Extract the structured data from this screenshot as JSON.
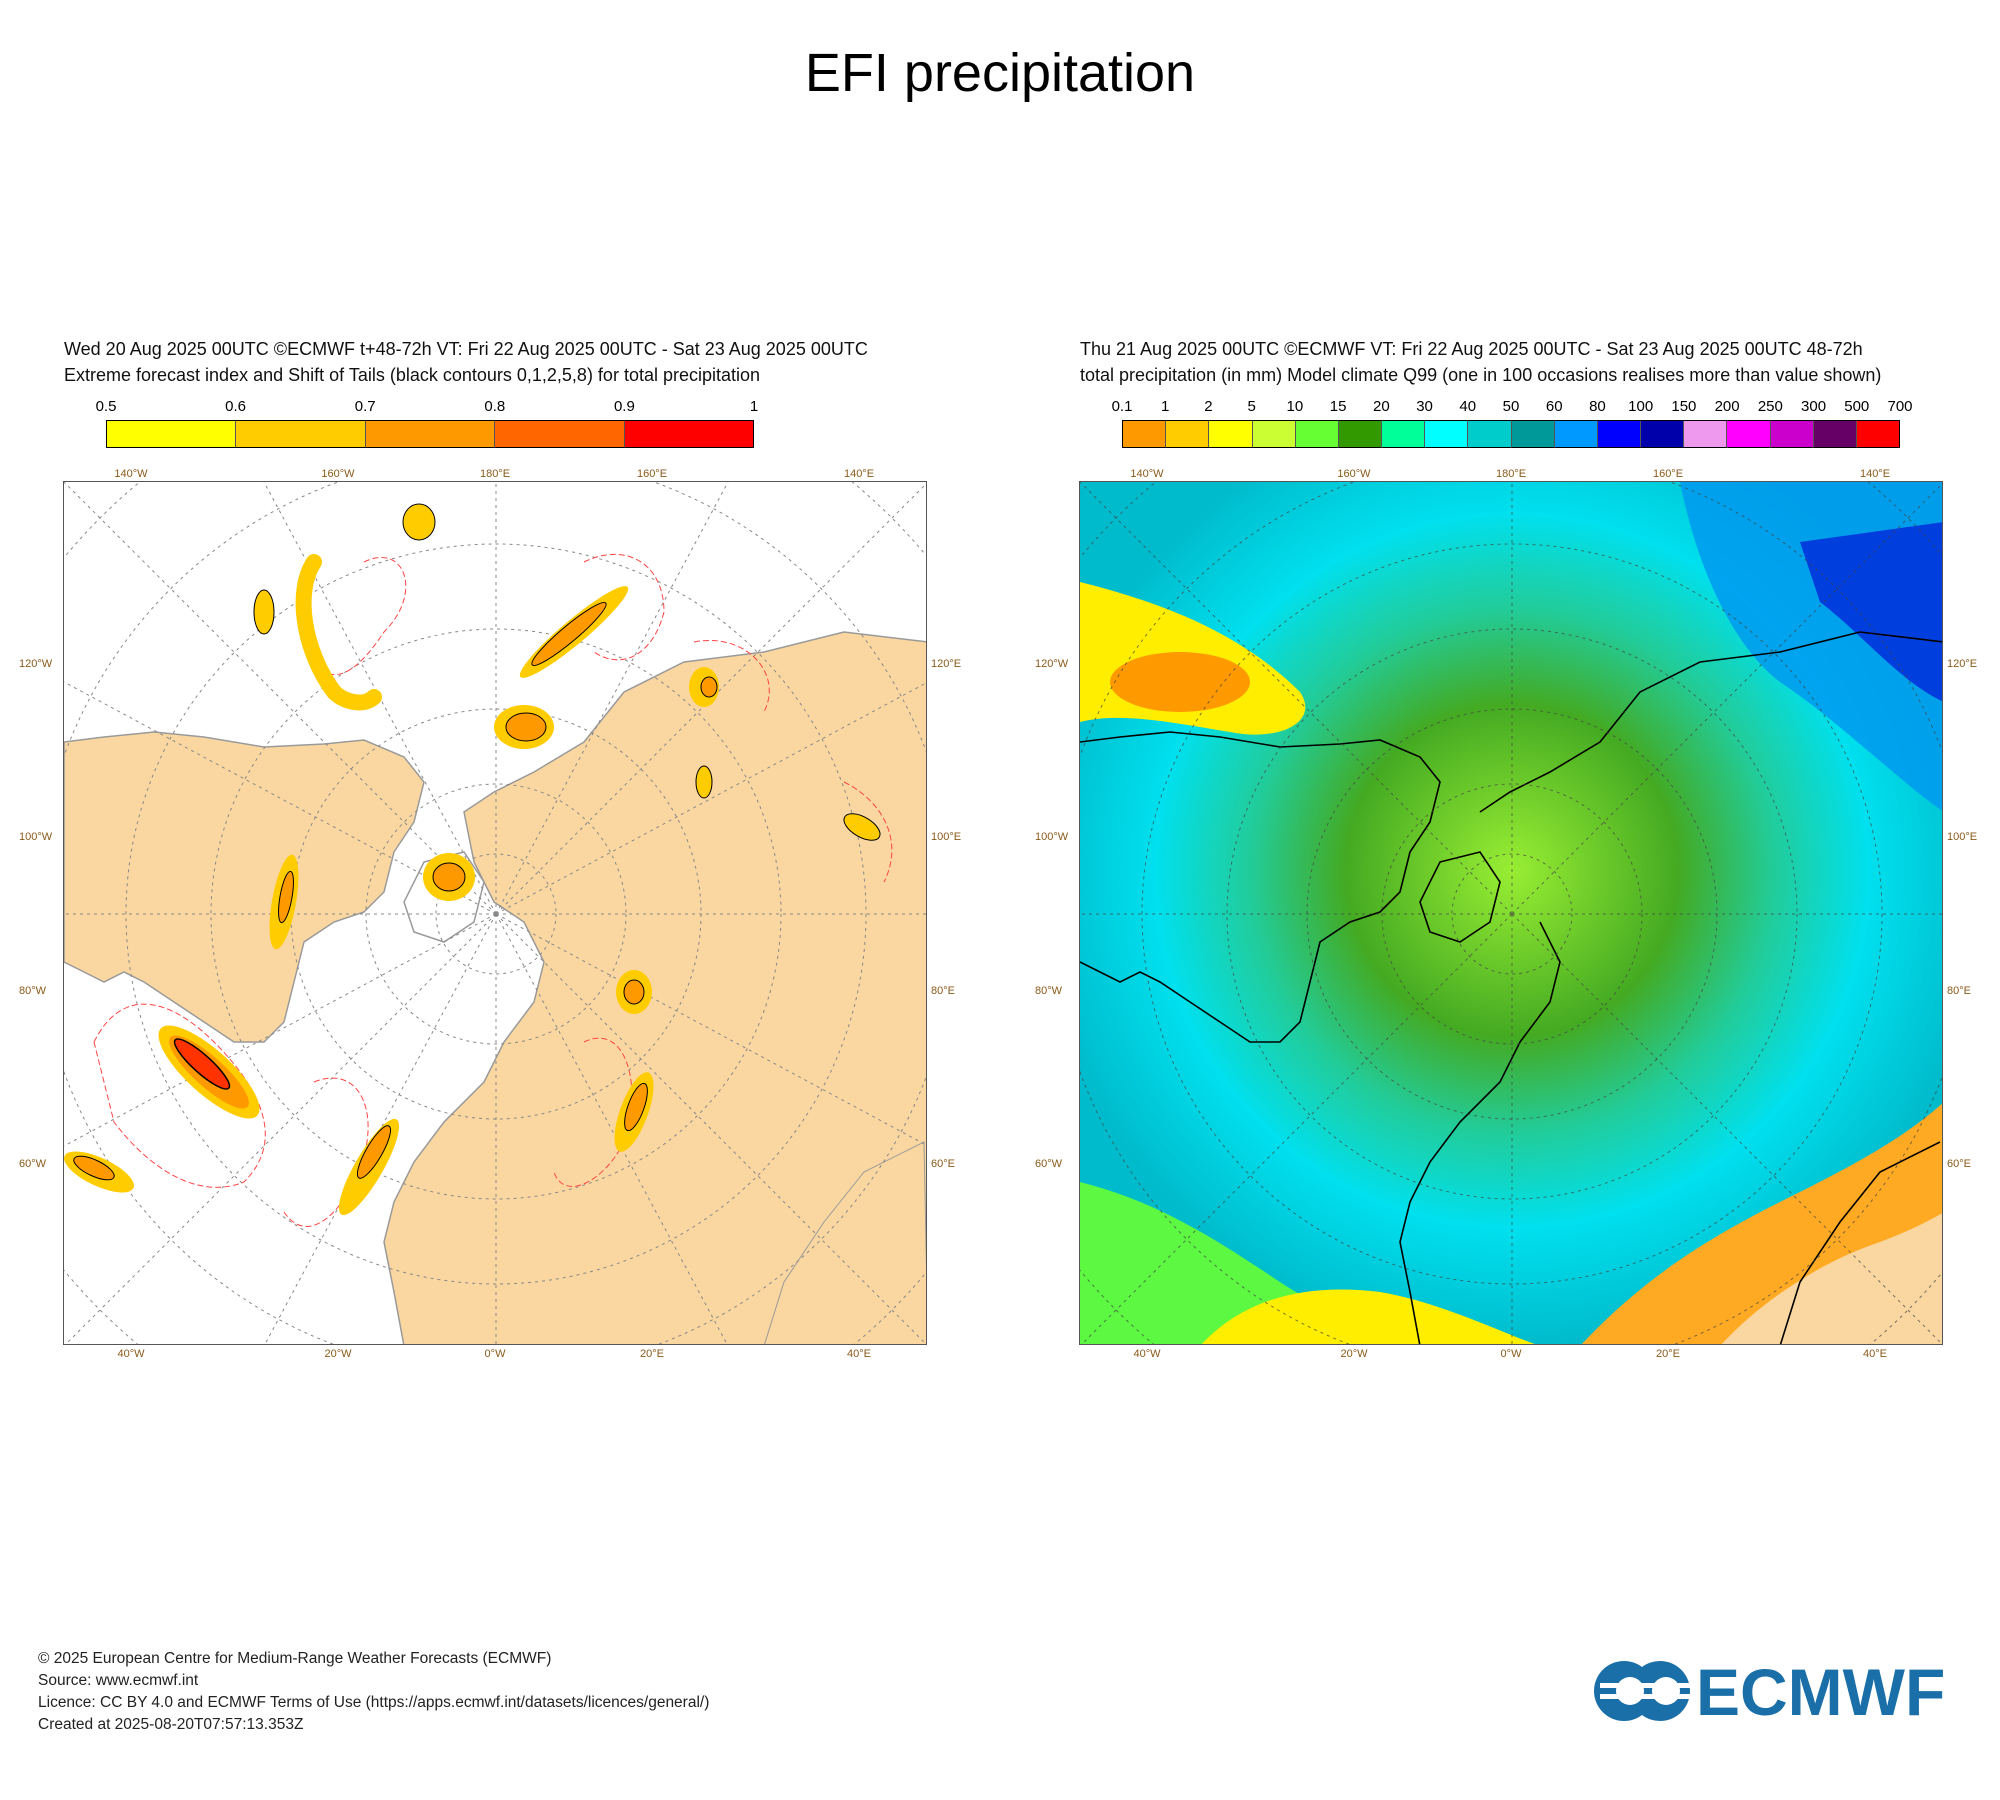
{
  "title": "EFI precipitation",
  "left_panel": {
    "header_line1": "Wed 20 Aug 2025 00UTC ©ECMWF t+48-72h  VT: Fri 22 Aug 2025 00UTC - Sat 23 Aug 2025 00UTC",
    "header_line2": "Extreme forecast index and Shift of Tails (black contours 0,1,2,5,8) for total precipitation",
    "colorbar_labels": [
      "0.5",
      "0.6",
      "0.7",
      "0.8",
      "0.9",
      "1"
    ],
    "colorbar_colors": [
      "#ffff00",
      "#ffcc00",
      "#ff9900",
      "#ff6600",
      "#ff0000"
    ]
  },
  "right_panel": {
    "header_line1": "Thu 21 Aug 2025 00UTC ©ECMWF VT: Fri 22 Aug 2025 00UTC - Sat 23 Aug 2025 00UTC   48-72h",
    "header_line2": "total precipitation (in mm)  Model climate Q99 (one in 100 occasions realises more than value shown)",
    "colorbar_labels": [
      "0.1",
      "1",
      "2",
      "5",
      "10",
      "15",
      "20",
      "30",
      "40",
      "50",
      "60",
      "80",
      "100",
      "150",
      "200",
      "250",
      "300",
      "500",
      "700"
    ],
    "colorbar_colors": [
      "#ff9900",
      "#ffcc00",
      "#ffff00",
      "#ccff33",
      "#66ff33",
      "#339900",
      "#00ff99",
      "#00ffff",
      "#00cccc",
      "#009999",
      "#0099ff",
      "#0000ff",
      "#0000aa",
      "#ee99ee",
      "#ff00ff",
      "#cc00cc",
      "#660066",
      "#ff0000"
    ]
  },
  "axis_labels": {
    "top": [
      "140°W",
      "160°W",
      "180°E",
      "160°E",
      "140°E"
    ],
    "bottom": [
      "40°W",
      "20°W",
      "0°W",
      "20°E",
      "40°E"
    ],
    "left": [
      "120°W",
      "100°W",
      "80°W",
      "60°W"
    ],
    "right": [
      "120°E",
      "100°E",
      "80°E",
      "60°E"
    ]
  },
  "footer": {
    "line1": "© 2025 European Centre for Medium-Range Weather Forecasts (ECMWF)",
    "line2": "Source: www.ecmwf.int",
    "line3": "Licence: CC BY 4.0 and ECMWF Terms of Use (https://apps.ecmwf.int/datasets/licences/general/)",
    "line4": "Created at 2025-08-20T07:57:13.353Z"
  },
  "logo_text": "ECMWF",
  "colors": {
    "land": "#fad7a0",
    "logo_blue": "#1a6fa8"
  }
}
